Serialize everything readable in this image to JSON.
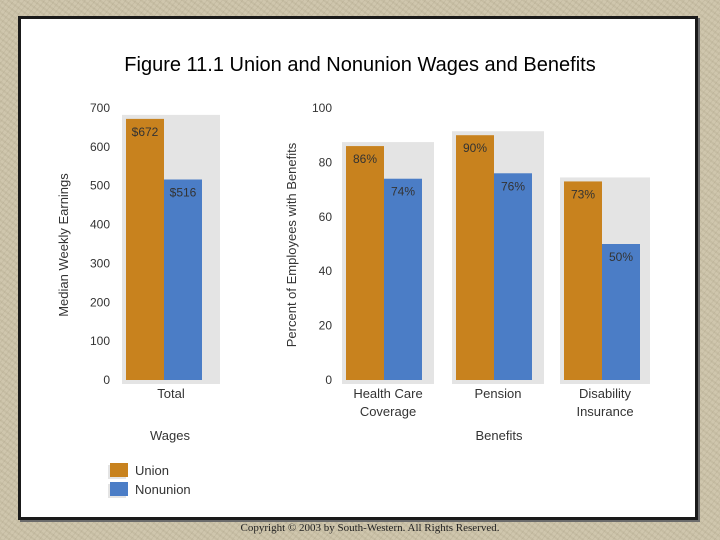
{
  "title": "Figure 11.1 Union and Nonunion Wages and Benefits",
  "copyright": "Copyright © 2003 by South-Western. All Rights Reserved.",
  "colors": {
    "union": "#c8821e",
    "nonunion": "#4b7dc6",
    "shadow": "#e4e4e4"
  },
  "chart_data": [
    {
      "type": "bar",
      "categories": [
        "Total"
      ],
      "series": [
        {
          "name": "Union",
          "values": [
            672
          ],
          "labels": [
            "$672"
          ]
        },
        {
          "name": "Nonunion",
          "values": [
            516
          ],
          "labels": [
            "$516"
          ]
        }
      ],
      "ylabel": "Median Weekly Earnings",
      "xlabel": "Wages",
      "ylim": [
        0,
        700
      ],
      "yticks": [
        "0",
        "100",
        "200",
        "300",
        "400",
        "500",
        "600",
        "700"
      ]
    },
    {
      "type": "bar",
      "categories": [
        "Health Care Coverage",
        "Pension",
        "Disability Insurance"
      ],
      "category_lines": [
        [
          "Health Care",
          "Coverage"
        ],
        [
          "Pension"
        ],
        [
          "Disability",
          "Insurance"
        ]
      ],
      "series": [
        {
          "name": "Union",
          "values": [
            86,
            90,
            73
          ],
          "labels": [
            "86%",
            "90%",
            "73%"
          ]
        },
        {
          "name": "Nonunion",
          "values": [
            74,
            76,
            50
          ],
          "labels": [
            "74%",
            "76%",
            "50%"
          ]
        }
      ],
      "ylabel": "Percent of Employees with Benefits",
      "xlabel": "Benefits",
      "ylim": [
        0,
        100
      ],
      "yticks": [
        "0",
        "20",
        "40",
        "60",
        "80",
        "100"
      ]
    }
  ],
  "legend": [
    {
      "label": "Union",
      "series": "union"
    },
    {
      "label": "Nonunion",
      "series": "nonunion"
    }
  ]
}
